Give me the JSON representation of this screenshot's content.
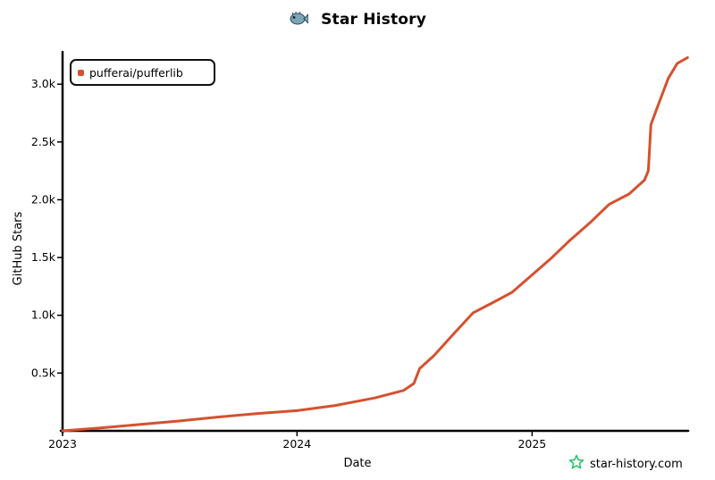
{
  "header": {
    "title": "Star History"
  },
  "watermark": {
    "text": "star-history.com",
    "icon": "star-outline-icon",
    "color": "#22c55e"
  },
  "colors": {
    "series": "#d5512f",
    "axis": "#000000"
  },
  "chart_data": {
    "type": "line",
    "title": "Star History",
    "xlabel": "Date",
    "ylabel": "GitHub Stars",
    "x_ticks": [
      "2023",
      "2024",
      "2025"
    ],
    "y_ticks": [
      "0.5k",
      "1.0k",
      "1.5k",
      "2.0k",
      "2.5k",
      "3.0k"
    ],
    "y_tick_values": [
      500,
      1000,
      1500,
      2000,
      2500,
      3000
    ],
    "xlim": [
      "2023-01-01",
      "2025-09-01"
    ],
    "ylim": [
      0,
      3280
    ],
    "grid": false,
    "legend_position": "top-left",
    "series": [
      {
        "name": "pufferai/pufferlib",
        "color": "#d5512f",
        "points": [
          [
            "2023-01-01",
            0
          ],
          [
            "2023-03-01",
            25
          ],
          [
            "2023-05-01",
            55
          ],
          [
            "2023-07-01",
            85
          ],
          [
            "2023-09-01",
            120
          ],
          [
            "2023-11-01",
            150
          ],
          [
            "2024-01-01",
            175
          ],
          [
            "2024-03-01",
            220
          ],
          [
            "2024-05-01",
            285
          ],
          [
            "2024-06-15",
            350
          ],
          [
            "2024-07-01",
            410
          ],
          [
            "2024-07-10",
            540
          ],
          [
            "2024-08-01",
            650
          ],
          [
            "2024-09-01",
            840
          ],
          [
            "2024-10-01",
            1020
          ],
          [
            "2024-11-01",
            1110
          ],
          [
            "2024-12-01",
            1200
          ],
          [
            "2025-01-01",
            1350
          ],
          [
            "2025-02-01",
            1500
          ],
          [
            "2025-03-01",
            1650
          ],
          [
            "2025-04-01",
            1800
          ],
          [
            "2025-05-01",
            1960
          ],
          [
            "2025-06-01",
            2050
          ],
          [
            "2025-06-25",
            2170
          ],
          [
            "2025-07-01",
            2250
          ],
          [
            "2025-07-05",
            2650
          ],
          [
            "2025-07-15",
            2800
          ],
          [
            "2025-08-01",
            3050
          ],
          [
            "2025-08-15",
            3180
          ],
          [
            "2025-08-31",
            3230
          ]
        ]
      }
    ]
  }
}
